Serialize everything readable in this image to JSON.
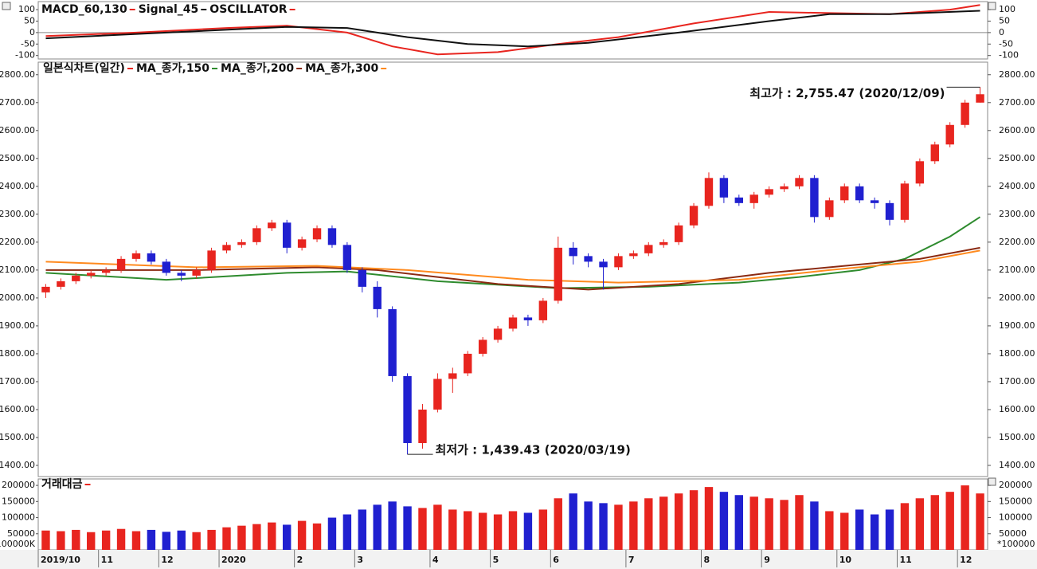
{
  "chart_data": [
    {
      "type": "line",
      "series": [
        {
          "name": "MACD_60,130",
          "color": "#e8251f",
          "x": [
            0,
            6,
            12,
            16,
            20,
            23,
            26,
            30,
            34,
            38,
            43,
            48,
            52,
            56,
            60,
            62
          ],
          "values": [
            -15,
            0,
            20,
            30,
            0,
            -60,
            -95,
            -85,
            -50,
            -20,
            40,
            90,
            85,
            80,
            100,
            120
          ]
        },
        {
          "name": "Signal_45",
          "color": "#111111",
          "x": [
            0,
            8,
            16,
            20,
            24,
            28,
            32,
            36,
            42,
            48,
            52,
            56,
            62
          ],
          "values": [
            -25,
            0,
            25,
            20,
            -20,
            -50,
            -60,
            -45,
            0,
            50,
            80,
            80,
            95
          ]
        },
        {
          "name": "OSCILLATOR",
          "color": "#e8251f"
        }
      ],
      "ylim": [
        -115,
        135
      ],
      "yticks": [
        100,
        50,
        0,
        -50,
        -100
      ],
      "zero_line": true
    },
    {
      "type": "candlestick",
      "title": "일본식차트(일간)",
      "color": "#e8251f",
      "up_color": "#e8251f",
      "down_color": "#2020d0",
      "categories": [
        "2019/10",
        null,
        null,
        null,
        "11",
        null,
        null,
        null,
        "12",
        null,
        null,
        null,
        "2020",
        null,
        null,
        null,
        null,
        "2",
        null,
        null,
        null,
        "3",
        null,
        null,
        null,
        null,
        "4",
        null,
        null,
        null,
        "5",
        null,
        null,
        null,
        "6",
        null,
        null,
        null,
        null,
        "7",
        null,
        null,
        null,
        null,
        "8",
        null,
        null,
        null,
        "9",
        null,
        null,
        null,
        null,
        "10",
        null,
        null,
        null,
        "11",
        null,
        null,
        null,
        "12",
        null
      ],
      "open": [
        2020,
        2040,
        2060,
        2080,
        2090,
        2100,
        2140,
        2160,
        2130,
        2090,
        2080,
        2100,
        2170,
        2190,
        2200,
        2250,
        2270,
        2180,
        2210,
        2250,
        2190,
        2100,
        2040,
        1960,
        1720,
        1480,
        1600,
        1710,
        1730,
        1800,
        1850,
        1890,
        1930,
        1920,
        1990,
        2180,
        2150,
        2130,
        2110,
        2150,
        2160,
        2190,
        2200,
        2260,
        2330,
        2430,
        2360,
        2340,
        2370,
        2390,
        2400,
        2430,
        2290,
        2350,
        2400,
        2350,
        2340,
        2280,
        2410,
        2490,
        2550,
        2620,
        2700
      ],
      "high": [
        2050,
        2070,
        2090,
        2100,
        2110,
        2150,
        2170,
        2170,
        2140,
        2100,
        2110,
        2180,
        2200,
        2210,
        2260,
        2280,
        2280,
        2220,
        2260,
        2260,
        2200,
        2110,
        2060,
        1970,
        1730,
        1620,
        1730,
        1750,
        1810,
        1860,
        1900,
        1940,
        1940,
        2000,
        2220,
        2200,
        2160,
        2140,
        2160,
        2170,
        2200,
        2210,
        2270,
        2340,
        2450,
        2440,
        2370,
        2380,
        2400,
        2410,
        2440,
        2440,
        2360,
        2410,
        2410,
        2360,
        2350,
        2420,
        2500,
        2560,
        2630,
        2710,
        2755.47
      ],
      "low": [
        2000,
        2030,
        2050,
        2070,
        2080,
        2090,
        2130,
        2120,
        2080,
        2060,
        2070,
        2090,
        2160,
        2180,
        2190,
        2240,
        2160,
        2170,
        2200,
        2180,
        2090,
        2020,
        1930,
        1700,
        1439.43,
        1460,
        1590,
        1660,
        1720,
        1790,
        1840,
        1880,
        1900,
        1910,
        1980,
        2120,
        2110,
        2030,
        2100,
        2140,
        2150,
        2180,
        2190,
        2250,
        2320,
        2340,
        2330,
        2320,
        2360,
        2380,
        2390,
        2270,
        2280,
        2340,
        2340,
        2320,
        2260,
        2270,
        2400,
        2480,
        2540,
        2610,
        2700
      ],
      "close": [
        2040,
        2060,
        2080,
        2090,
        2100,
        2140,
        2160,
        2130,
        2090,
        2080,
        2100,
        2170,
        2190,
        2200,
        2250,
        2270,
        2180,
        2210,
        2250,
        2190,
        2100,
        2040,
        1960,
        1720,
        1480,
        1600,
        1710,
        1730,
        1800,
        1850,
        1890,
        1930,
        1920,
        1990,
        2180,
        2150,
        2130,
        2110,
        2150,
        2160,
        2190,
        2200,
        2260,
        2330,
        2430,
        2360,
        2340,
        2370,
        2390,
        2400,
        2430,
        2290,
        2350,
        2400,
        2350,
        2340,
        2280,
        2410,
        2490,
        2550,
        2620,
        2700,
        2730
      ],
      "lines": [
        {
          "name": "MA_종가,150",
          "color": "#2e8b2e",
          "x": [
            0,
            8,
            16,
            20,
            26,
            34,
            40,
            46,
            50,
            54,
            57,
            60,
            62
          ],
          "values": [
            2090,
            2065,
            2090,
            2095,
            2060,
            2035,
            2040,
            2055,
            2075,
            2100,
            2140,
            2220,
            2290
          ]
        },
        {
          "name": "MA_종가,200",
          "color": "#8b2a12",
          "x": [
            0,
            10,
            18,
            22,
            30,
            36,
            42,
            48,
            54,
            58,
            62
          ],
          "values": [
            2100,
            2100,
            2110,
            2100,
            2050,
            2030,
            2050,
            2090,
            2120,
            2140,
            2180
          ]
        },
        {
          "name": "MA_종가,300",
          "color": "#ff8a1e",
          "x": [
            0,
            10,
            18,
            24,
            32,
            38,
            46,
            52,
            58,
            62
          ],
          "values": [
            2130,
            2110,
            2115,
            2100,
            2065,
            2055,
            2065,
            2100,
            2130,
            2170
          ]
        }
      ],
      "ylim": [
        1360,
        2845
      ],
      "yticks": [
        {
          "value": 2800,
          "label": "2800.00"
        },
        {
          "value": 2700,
          "label": "2700.00"
        },
        {
          "value": 2600,
          "label": "2600.00"
        },
        {
          "value": 2500,
          "label": "2500.00"
        },
        {
          "value": 2400,
          "label": "2400.00"
        },
        {
          "value": 2300,
          "label": "2300.00"
        },
        {
          "value": 2200,
          "label": "2200.00"
        },
        {
          "value": 2100,
          "label": "2100.00"
        },
        {
          "value": 2000,
          "label": "2000.00"
        },
        {
          "value": 1900,
          "label": "1900.00"
        },
        {
          "value": 1800,
          "label": "1800.00"
        },
        {
          "value": 1700,
          "label": "1700.00"
        },
        {
          "value": 1600,
          "label": "1600.00"
        },
        {
          "value": 1500,
          "label": "1500.00"
        },
        {
          "value": 1400,
          "label": "1400.00"
        }
      ],
      "annotations": [
        {
          "text": "최고가 : 2,755.47 (2020/12/09)",
          "value": 2755.47,
          "color": "#e8251f"
        },
        {
          "text": "최저가 : 1,439.43 (2020/03/19)",
          "value": 1439.43,
          "color": "#2020d0"
        }
      ]
    },
    {
      "type": "bar",
      "title": "거래대금",
      "color": "#e8251f",
      "values": [
        60000,
        58000,
        62000,
        55000,
        60000,
        65000,
        58000,
        62000,
        56000,
        60000,
        55000,
        62000,
        70000,
        75000,
        80000,
        85000,
        78000,
        90000,
        82000,
        100000,
        110000,
        125000,
        140000,
        150000,
        135000,
        130000,
        140000,
        125000,
        120000,
        115000,
        110000,
        120000,
        115000,
        125000,
        160000,
        175000,
        150000,
        145000,
        140000,
        150000,
        160000,
        165000,
        175000,
        185000,
        195000,
        180000,
        170000,
        165000,
        160000,
        155000,
        170000,
        150000,
        120000,
        115000,
        125000,
        110000,
        125000,
        145000,
        160000,
        170000,
        180000,
        200000,
        175000
      ],
      "ylim": [
        0,
        220000
      ],
      "yticks": [
        200000,
        150000,
        100000,
        50000
      ],
      "unit_label_left": "100000K",
      "unit_label_right": "*100000"
    }
  ]
}
